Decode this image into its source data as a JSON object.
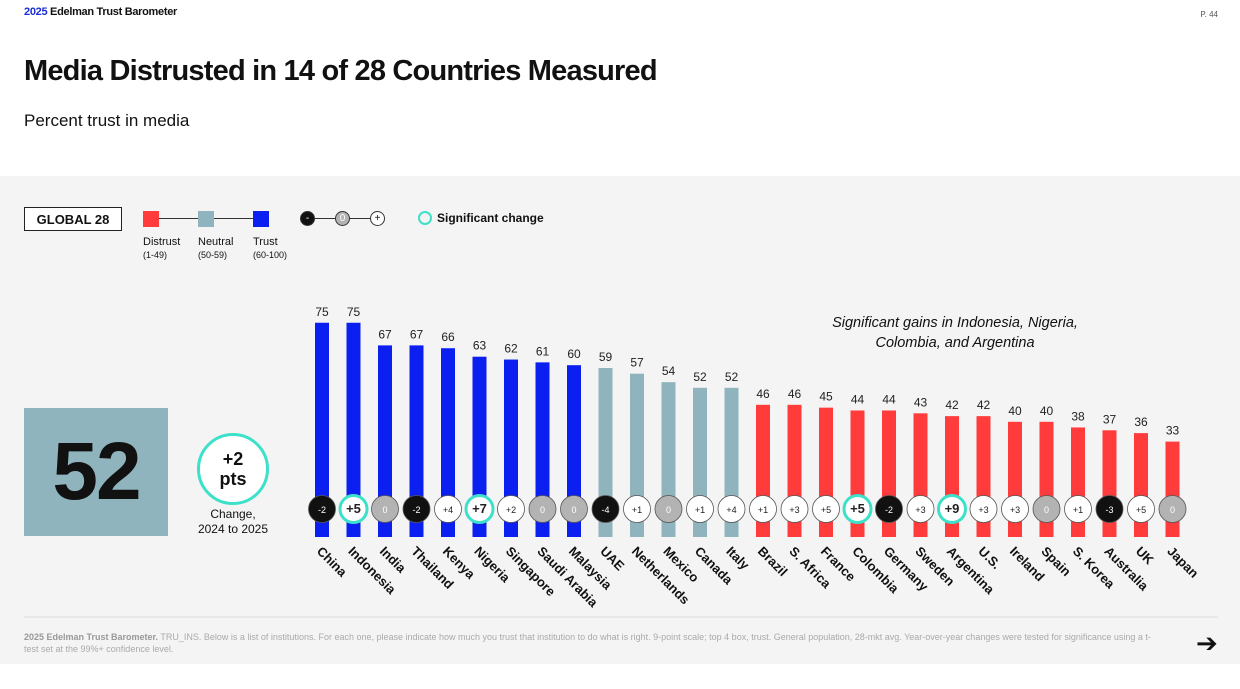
{
  "header": {
    "brand_year": "2025",
    "brand_name": "Edelman Trust Barometer",
    "page": "P. 44"
  },
  "title": "Media Distrusted in 14 of 28 Countries Measured",
  "subtitle": "Percent trust in media",
  "legend": {
    "global_label": "GLOBAL 28",
    "distrust": "Distrust",
    "distrust_range": "(1-49)",
    "neutral": "Neutral",
    "neutral_range": "(50-59)",
    "trust": "Trust",
    "trust_range": "(60-100)",
    "minus": "-",
    "zero": "0",
    "plus": "+",
    "significant": "Significant change"
  },
  "colors": {
    "distrust": "#ff3b3b",
    "neutral": "#8fb4bd",
    "trust": "#0a1ff0",
    "significant": "#3de0c8",
    "decline": "#111111",
    "nochange": "#b3b3b3"
  },
  "global": {
    "value": "52",
    "change_line1": "+2",
    "change_line2": "pts",
    "change_label1": "Change,",
    "change_label2": "2024 to 2025"
  },
  "annotation": {
    "line1": "Significant gains in Indonesia, Nigeria,",
    "line2": "Colombia, and Argentina"
  },
  "chart_data": {
    "type": "bar",
    "ylim": [
      0,
      100
    ],
    "categories": [
      "China",
      "Indonesia",
      "India",
      "Thailand",
      "Kenya",
      "Nigeria",
      "Singapore",
      "Saudi Arabia",
      "Malaysia",
      "UAE",
      "Netherlands",
      "Mexico",
      "Canada",
      "Italy",
      "Brazil",
      "S. Africa",
      "France",
      "Colombia",
      "Germany",
      "Sweden",
      "Argentina",
      "U.S.",
      "Ireland",
      "Spain",
      "S. Korea",
      "Australia",
      "UK",
      "Japan"
    ],
    "values": [
      75,
      75,
      67,
      67,
      66,
      63,
      62,
      61,
      60,
      59,
      57,
      54,
      52,
      52,
      46,
      46,
      45,
      44,
      44,
      43,
      42,
      42,
      40,
      40,
      38,
      37,
      36,
      33
    ],
    "changes": [
      "-2",
      "+5",
      "0",
      "-2",
      "+4",
      "+7",
      "+2",
      "0",
      "0",
      "-4",
      "+1",
      "0",
      "+1",
      "+4",
      "+1",
      "+3",
      "+5",
      "+5",
      "-2",
      "+3",
      "+9",
      "+3",
      "+3",
      "0",
      "+1",
      "-3",
      "+5",
      "0"
    ],
    "significant": [
      false,
      true,
      false,
      false,
      false,
      true,
      false,
      false,
      false,
      false,
      false,
      false,
      false,
      false,
      false,
      false,
      false,
      true,
      false,
      false,
      true,
      false,
      false,
      false,
      false,
      false,
      false,
      false
    ]
  },
  "footer": {
    "bold": "2025 Edelman Trust Barometer.",
    "text": " TRU_INS. Below is a list of institutions. For each one, please indicate how much you trust that institution to do what is right. 9-point scale; top 4 box, trust. General population, 28-mkt avg. Year-over-year changes were tested for significance using a t-test set at the 99%+ confidence level."
  }
}
